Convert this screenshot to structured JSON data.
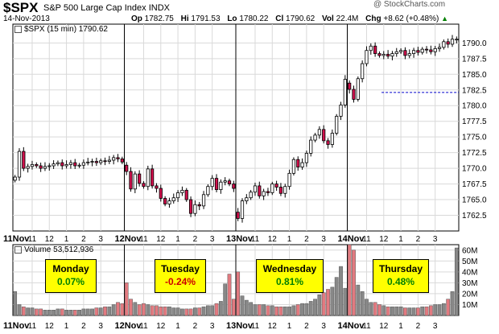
{
  "header": {
    "symbol": "$SPX",
    "name": "S&P 500 Large Cap Index",
    "exchange": "INDX",
    "date": "14-Nov-2013",
    "open_label": "Op",
    "open": "1782.75",
    "high_label": "Hi",
    "high": "1791.53",
    "low_label": "Lo",
    "low": "1780.22",
    "close_label": "Cl",
    "close": "1790.62",
    "vol_label": "Vol",
    "vol": "22.4M",
    "chg_label": "Chg",
    "chg": "+8.62 (+0.48%)",
    "credit": "@ StockCharts.com"
  },
  "price_legend": "$SPX (15 min) 1790.62",
  "volume_legend": "Volume 53,512,936",
  "colors": {
    "up": "#ffffff",
    "down": "#d0104c",
    "line": "#000000",
    "grid": "#d9d9d9",
    "ref": "#0000cc",
    "vol_up": "#888888",
    "vol_down": "#e27a80",
    "box": "#ffff00"
  },
  "chart_data": [
    {
      "type": "candlestick",
      "title": "$SPX (15 min) 1790.62",
      "ylim": [
        1760,
        1793
      ],
      "yticks": [
        "1762.5",
        "1765.0",
        "1767.5",
        "1770.0",
        "1772.5",
        "1775.0",
        "1777.5",
        "1780.0",
        "1782.5",
        "1785.0",
        "1787.5",
        "1790.0"
      ],
      "reference_line": {
        "value": 1782.1,
        "style": "dashed"
      },
      "x_groups": [
        {
          "day": "11Nov",
          "ticks": [
            "11",
            "12",
            "1",
            "2",
            "3"
          ]
        },
        {
          "day": "12Nov",
          "ticks": [
            "11",
            "12",
            "1",
            "2",
            "3"
          ]
        },
        {
          "day": "13Nov",
          "ticks": [
            "11",
            "12",
            "1",
            "2",
            "3"
          ]
        },
        {
          "day": "14Nov",
          "ticks": [
            "11",
            "12",
            "1",
            "2",
            "3"
          ]
        }
      ],
      "closes": [
        [
          1768.6,
          1772.7,
          1770.0,
          1770.3,
          1770.6,
          1770.4,
          1770.0,
          1770.3,
          1770.4,
          1770.7,
          1770.9,
          1770.4,
          1770.6,
          1770.9,
          1770.4,
          1770.5,
          1770.9,
          1771.0,
          1771.1,
          1770.9,
          1771.2,
          1771.1,
          1771.3,
          1771.7,
          1771.5,
          1771.0
        ],
        [
          1769.5,
          1766.7,
          1769.1,
          1767.6,
          1767.1,
          1769.9,
          1767.2,
          1766.8,
          1765.2,
          1764.3,
          1764.8,
          1765.3,
          1766.1,
          1766.5,
          1765.0,
          1762.8,
          1764.2,
          1764.0,
          1765.8,
          1767.1,
          1768.4,
          1766.6,
          1767.8,
          1768.0,
          1767.5,
          1766.8
        ],
        [
          1762.0,
          1764.8,
          1765.3,
          1766.2,
          1767.2,
          1765.6,
          1766.3,
          1766.1,
          1767.5,
          1767.0,
          1766.0,
          1767.1,
          1769.2,
          1771.4,
          1770.2,
          1770.9,
          1772.4,
          1774.5,
          1775.3,
          1776.2,
          1774.4,
          1773.8,
          1775.6,
          1778.3,
          1780.1,
          1784.2
        ],
        [
          1782.6,
          1781.0,
          1784.3,
          1786.7,
          1788.8,
          1789.5,
          1788.3,
          1788.0,
          1788.2,
          1787.9,
          1788.3,
          1788.6,
          1788.8,
          1788.0,
          1788.3,
          1788.8,
          1788.5,
          1789.0,
          1788.9,
          1788.6,
          1789.1,
          1789.3,
          1790.2,
          1789.8,
          1790.6,
          1790.6
        ]
      ]
    },
    {
      "type": "bar",
      "title": "Volume 53,512,936",
      "ylim": [
        0,
        65
      ],
      "unit": "M",
      "yticks": [
        "10M",
        "20M",
        "30M",
        "40M",
        "50M",
        "60M"
      ],
      "volumes_m": [
        [
          22,
          10,
          8,
          7,
          7,
          6,
          6,
          5,
          5,
          5,
          6,
          6,
          5,
          5,
          5,
          5,
          6,
          6,
          6,
          7,
          7,
          8,
          8,
          10,
          12,
          11
        ],
        [
          30,
          15,
          12,
          10,
          11,
          10,
          9,
          9,
          8,
          8,
          8,
          7,
          7,
          6,
          6,
          6,
          7,
          7,
          8,
          9,
          9,
          11,
          13,
          29,
          38,
          15
        ],
        [
          40,
          18,
          14,
          12,
          10,
          10,
          10,
          9,
          9,
          8,
          8,
          8,
          8,
          9,
          10,
          11,
          11,
          13,
          15,
          19,
          21,
          24,
          26,
          35,
          45,
          25
        ],
        [
          65,
          60,
          28,
          22,
          15,
          12,
          12,
          10,
          9,
          8,
          8,
          8,
          8,
          7,
          7,
          7,
          7,
          8,
          8,
          9,
          10,
          10,
          11,
          15,
          22,
          62
        ]
      ]
    }
  ],
  "annotations": [
    {
      "day": "Monday",
      "pct": "0.07%",
      "tone": "pos"
    },
    {
      "day": "Tuesday",
      "pct": "-0.24%",
      "tone": "neg"
    },
    {
      "day": "Wednesday",
      "pct": "0.81%",
      "tone": "pos"
    },
    {
      "day": "Thursday",
      "pct": "0.48%",
      "tone": "pos"
    }
  ]
}
